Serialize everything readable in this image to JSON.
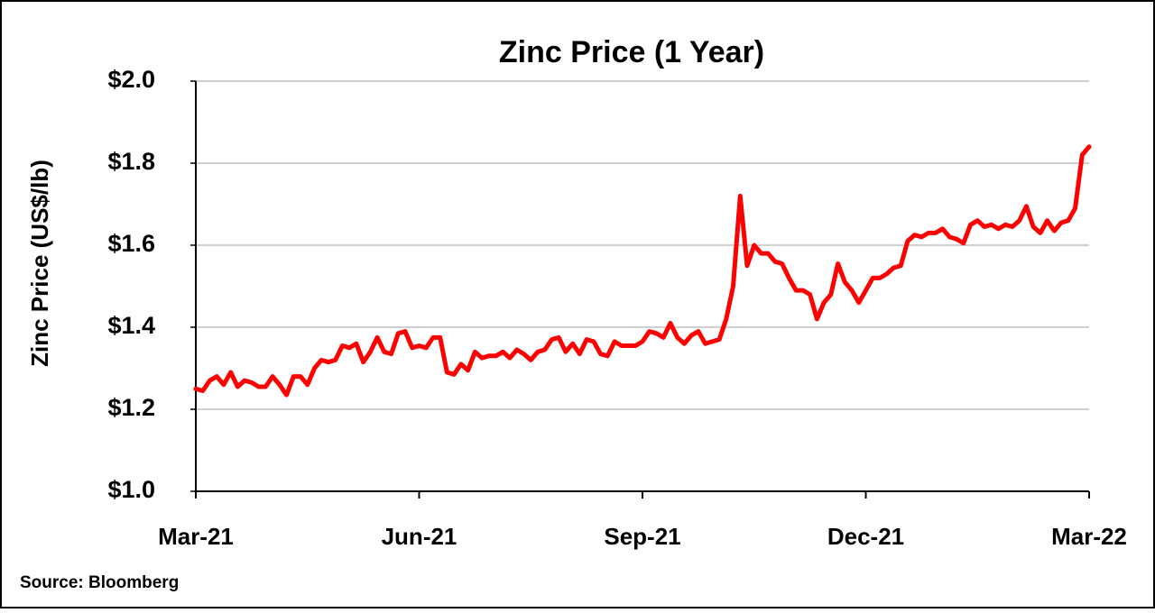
{
  "chart_data": {
    "type": "line",
    "title": "Zinc Price (1 Year)",
    "y_label": "Zinc Price (US$/lb)",
    "source": "Source: Bloomberg",
    "color": "#ff0000",
    "grid": true,
    "ylim": [
      1.0,
      2.0
    ],
    "yticks": [
      {
        "value": 1.0,
        "label": "$1.0"
      },
      {
        "value": 1.2,
        "label": "$1.2"
      },
      {
        "value": 1.4,
        "label": "$1.4"
      },
      {
        "value": 1.6,
        "label": "$1.6"
      },
      {
        "value": 1.8,
        "label": "$1.8"
      },
      {
        "value": 2.0,
        "label": "$2.0"
      }
    ],
    "categories": [
      "Mar-21",
      null,
      null,
      null,
      null,
      null,
      null,
      null,
      null,
      null,
      null,
      null,
      null,
      null,
      null,
      null,
      null,
      null,
      null,
      null,
      null,
      null,
      null,
      null,
      null,
      null,
      null,
      null,
      null,
      null,
      null,
      null,
      "Jun-21",
      null,
      null,
      null,
      null,
      null,
      null,
      null,
      null,
      null,
      null,
      null,
      null,
      null,
      null,
      null,
      null,
      null,
      null,
      null,
      null,
      null,
      null,
      null,
      null,
      null,
      null,
      null,
      null,
      null,
      null,
      null,
      "Sep-21",
      null,
      null,
      null,
      null,
      null,
      null,
      null,
      null,
      null,
      null,
      null,
      null,
      null,
      null,
      null,
      null,
      null,
      null,
      null,
      null,
      null,
      null,
      null,
      null,
      null,
      null,
      null,
      null,
      null,
      null,
      null,
      "Dec-21",
      null,
      null,
      null,
      null,
      null,
      null,
      null,
      null,
      null,
      null,
      null,
      null,
      null,
      null,
      null,
      null,
      null,
      null,
      null,
      null,
      null,
      null,
      null,
      null,
      null,
      null,
      null,
      null,
      null,
      null,
      null,
      "Mar-22"
    ],
    "values": [
      1.25,
      1.245,
      1.27,
      1.28,
      1.26,
      1.29,
      1.255,
      1.27,
      1.265,
      1.255,
      1.255,
      1.28,
      1.26,
      1.235,
      1.28,
      1.28,
      1.26,
      1.3,
      1.32,
      1.315,
      1.32,
      1.355,
      1.35,
      1.36,
      1.315,
      1.34,
      1.375,
      1.34,
      1.335,
      1.385,
      1.39,
      1.35,
      1.355,
      1.35,
      1.375,
      1.375,
      1.29,
      1.285,
      1.31,
      1.295,
      1.34,
      1.325,
      1.33,
      1.33,
      1.34,
      1.325,
      1.345,
      1.335,
      1.32,
      1.34,
      1.345,
      1.37,
      1.375,
      1.34,
      1.36,
      1.335,
      1.37,
      1.365,
      1.335,
      1.33,
      1.365,
      1.355,
      1.355,
      1.355,
      1.365,
      1.39,
      1.385,
      1.375,
      1.41,
      1.375,
      1.36,
      1.38,
      1.39,
      1.36,
      1.365,
      1.37,
      1.42,
      1.5,
      1.72,
      1.55,
      1.6,
      1.58,
      1.58,
      1.56,
      1.555,
      1.52,
      1.49,
      1.49,
      1.48,
      1.42,
      1.46,
      1.48,
      1.555,
      1.51,
      1.49,
      1.46,
      1.49,
      1.52,
      1.52,
      1.53,
      1.545,
      1.55,
      1.61,
      1.625,
      1.62,
      1.63,
      1.63,
      1.64,
      1.62,
      1.615,
      1.605,
      1.65,
      1.66,
      1.645,
      1.65,
      1.64,
      1.65,
      1.645,
      1.66,
      1.695,
      1.645,
      1.63,
      1.66,
      1.635,
      1.655,
      1.66,
      1.69,
      1.82,
      1.84
    ]
  }
}
